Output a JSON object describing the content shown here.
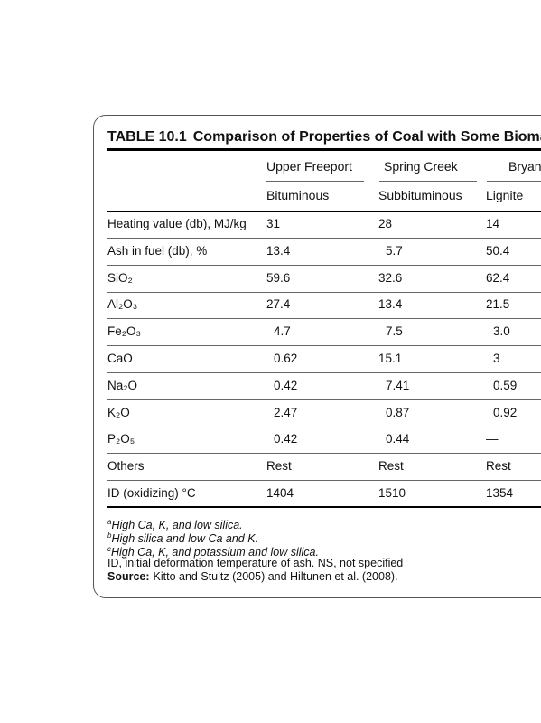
{
  "table": {
    "label": "TABLE 10.1",
    "title": "Comparison of Properties of Coal with Some Biomas",
    "header_groups": [
      "Upper Freeport",
      "Spring Creek",
      "Bryan"
    ],
    "header_types": [
      "Bituminous",
      "Subbituminous",
      "Lignite"
    ],
    "rows": [
      [
        "Heating value (db), MJ/kg",
        "31",
        "28",
        "14"
      ],
      [
        "Ash in fuel (db), %",
        "13.4",
        "5.7",
        "50.4"
      ],
      [
        "SiO₂",
        "59.6",
        "32.6",
        "62.4"
      ],
      [
        "Al₂O₃",
        "27.4",
        "13.4",
        "21.5"
      ],
      [
        "Fe₂O₃",
        "4.7",
        "7.5",
        "3.0"
      ],
      [
        "CaO",
        "0.62",
        "15.1",
        "3"
      ],
      [
        "Na₂O",
        "0.42",
        "7.41",
        "0.59"
      ],
      [
        "K₂O",
        "2.47",
        "0.87",
        "0.92"
      ],
      [
        "P₂O₅",
        "0.42",
        "0.44",
        "—"
      ],
      [
        "Others",
        "Rest",
        "Rest",
        "Rest"
      ],
      [
        "ID (oxidizing) °C",
        "1404",
        "1510",
        "1354"
      ]
    ],
    "footnotes": [
      {
        "mark": "a",
        "text": "High Ca, K, and low silica."
      },
      {
        "mark": "b",
        "text": "High silica and low Ca and K."
      },
      {
        "mark": "c",
        "text": "High Ca, K, and potassium and low silica."
      }
    ],
    "abbreviations": "ID, initial deformation temperature of ash. NS, not specified",
    "source_label": "Source:",
    "source_text": "Kitto and Stultz (2005) and Hiltunen et al. (2008)."
  }
}
